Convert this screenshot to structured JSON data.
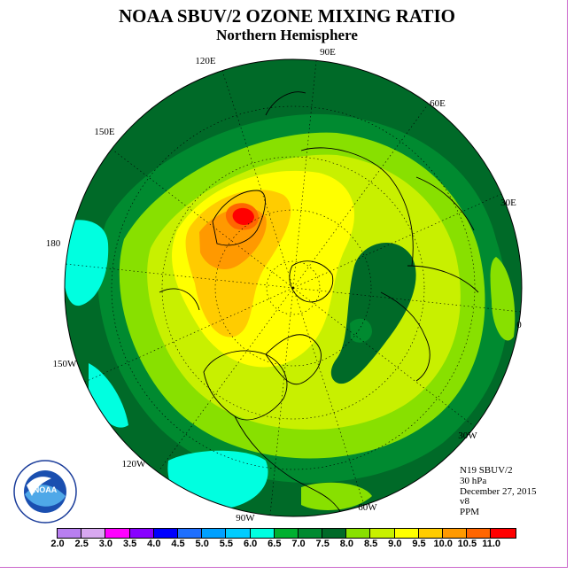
{
  "header": {
    "title": "NOAA SBUV/2 OZONE MIXING RATIO",
    "subtitle": "Northern Hemisphere"
  },
  "map": {
    "projection": "north polar stereographic",
    "longitude_labels": [
      {
        "text": "90E",
        "lon": 90
      },
      {
        "text": "60E",
        "lon": 60
      },
      {
        "text": "30E",
        "lon": 30
      },
      {
        "text": "0",
        "lon": 0
      },
      {
        "text": "30W",
        "lon": -30
      },
      {
        "text": "60W",
        "lon": -60
      },
      {
        "text": "90W",
        "lon": -90
      },
      {
        "text": "120W",
        "lon": -120
      },
      {
        "text": "150W",
        "lon": -150
      },
      {
        "text": "180",
        "lon": 180
      },
      {
        "text": "150E",
        "lon": 150
      },
      {
        "text": "120E",
        "lon": 120
      }
    ]
  },
  "info": {
    "satellite": "N19 SBUV/2",
    "level": "30 hPa",
    "date": "December 27, 2015",
    "version": "v8",
    "units": "PPM"
  },
  "logo": {
    "text": "NOAA",
    "ring_text": "NATIONAL OCEANIC AND ATMOSPHERIC ADMINISTRATION · U.S. DEPARTMENT OF COMMERCE"
  },
  "colorbar": {
    "labels": [
      "2.0",
      "2.5",
      "3.0",
      "3.5",
      "4.0",
      "4.5",
      "5.0",
      "5.5",
      "6.0",
      "6.5",
      "7.0",
      "7.5",
      "8.0",
      "8.5",
      "9.0",
      "9.5",
      "10.0",
      "10.5",
      "11.0"
    ],
    "colors": [
      "#b87ff0",
      "#d8a8f0",
      "#ff00ff",
      "#8800ff",
      "#0000ff",
      "#1e6fff",
      "#00a0ff",
      "#00ccff",
      "#00ffe0",
      "#00b030",
      "#008a30",
      "#006a28",
      "#88e000",
      "#c8f000",
      "#ffff00",
      "#ffcc00",
      "#ff9900",
      "#ff6600",
      "#ff0000",
      "#996633"
    ]
  }
}
